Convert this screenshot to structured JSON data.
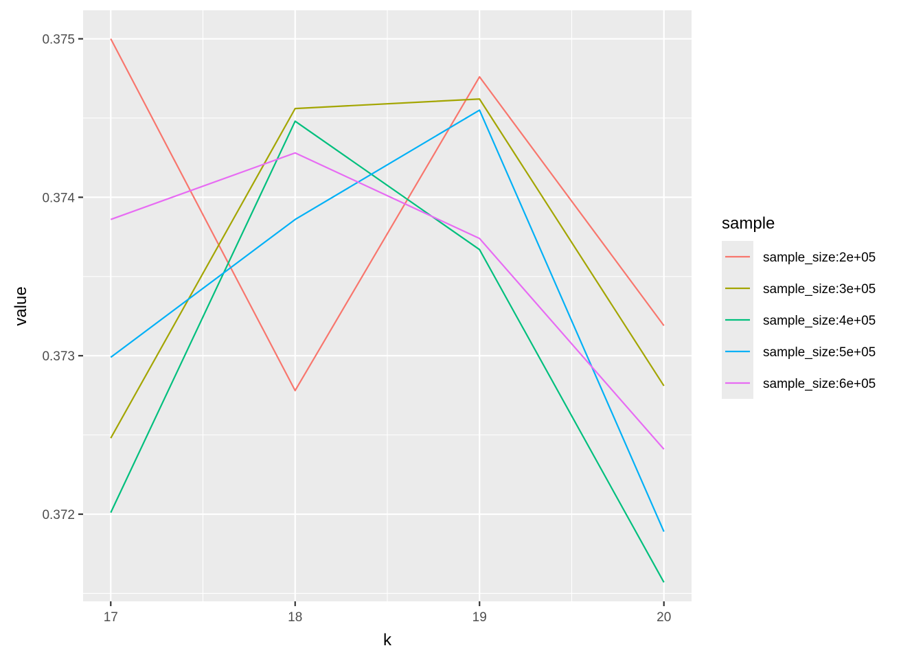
{
  "chart_data": {
    "type": "line",
    "title": "",
    "xlabel": "k",
    "ylabel": "value",
    "x": [
      17,
      18,
      19,
      20
    ],
    "x_tick_labels": [
      "17",
      "18",
      "19",
      "20"
    ],
    "y_ticks": [
      0.372,
      0.373,
      0.374,
      0.375
    ],
    "y_tick_labels": [
      "0.372",
      "0.373",
      "0.374",
      "0.375"
    ],
    "xlim": [
      16.85,
      20.15
    ],
    "ylim": [
      0.37145,
      0.37518
    ],
    "grid": true,
    "legend_title": "sample",
    "legend_position": "right",
    "background": "#ebebeb",
    "series": [
      {
        "name": "sample_size:2e+05",
        "color": "#F8766D",
        "values": [
          0.375,
          0.37278,
          0.37476,
          0.37319
        ]
      },
      {
        "name": "sample_size:3e+05",
        "color": "#A3A500",
        "values": [
          0.37248,
          0.37456,
          0.37462,
          0.37281
        ]
      },
      {
        "name": "sample_size:4e+05",
        "color": "#00BF7D",
        "values": [
          0.37201,
          0.37448,
          0.37367,
          0.37157
        ]
      },
      {
        "name": "sample_size:5e+05",
        "color": "#00B0F6",
        "values": [
          0.37299,
          0.37386,
          0.37455,
          0.37189
        ]
      },
      {
        "name": "sample_size:6e+05",
        "color": "#E76BF3",
        "values": [
          0.37386,
          0.37428,
          0.37374,
          0.37241
        ]
      }
    ]
  }
}
